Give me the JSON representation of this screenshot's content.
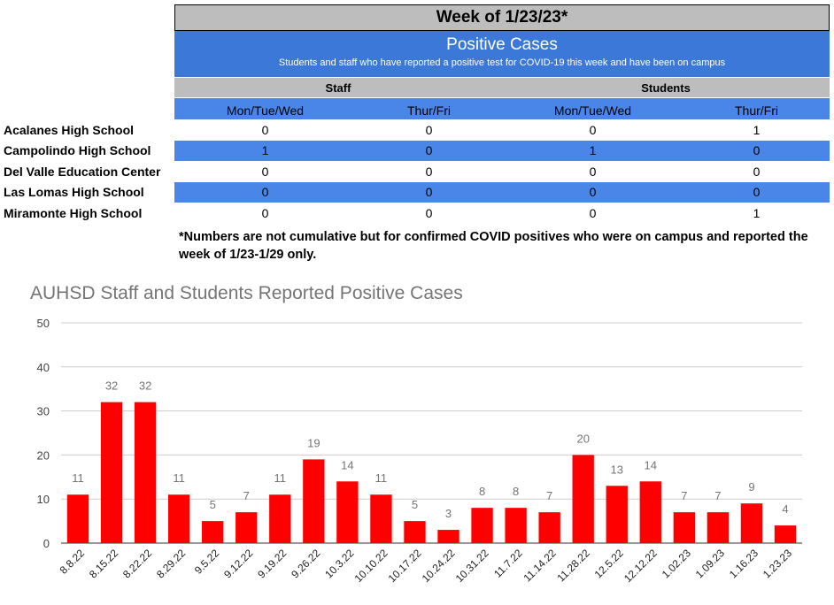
{
  "table": {
    "week_title": "Week of 1/23/23*",
    "header_title": "Positive Cases",
    "header_subtitle": "Students and staff who have reported a positive test for COVID-19 this week and have been on campus",
    "groups": [
      "Staff",
      "Students"
    ],
    "subcolumns": [
      "Mon/Tue/Wed",
      "Thur/Fri",
      "Mon/Tue/Wed",
      "Thur/Fri"
    ],
    "rows": [
      {
        "school": "Acalanes High School",
        "values": [
          "0",
          "0",
          "0",
          "1"
        ]
      },
      {
        "school": "Campolindo High School",
        "values": [
          "1",
          "0",
          "1",
          "0"
        ]
      },
      {
        "school": "Del Valle Education Center",
        "values": [
          "0",
          "0",
          "0",
          "0"
        ]
      },
      {
        "school": "Las Lomas High School",
        "values": [
          "0",
          "0",
          "0",
          "0"
        ]
      },
      {
        "school": "Miramonte High School",
        "values": [
          "0",
          "0",
          "0",
          "1"
        ]
      }
    ],
    "footnote": "*Numbers are not cumulative but for confirmed COVID positives who were on campus and reported the week of 1/23-1/29 only."
  },
  "colors": {
    "header_blue": "#3c78d8",
    "row_blue": "#4a86e8",
    "header_gray": "#bdbdbd",
    "bar_red": "#ff0000"
  },
  "chart_data": {
    "type": "bar",
    "title": "AUHSD Staff and Students Reported Positive Cases",
    "categories": [
      "8.8.22",
      "8.15.22",
      "8.22.22",
      "8.29.22",
      "9.5.22",
      "9.12.22",
      "9.19.22",
      "9.26.22",
      "10.3.22",
      "10.10.22",
      "10.17.22",
      "10.24.22",
      "10.31.22",
      "11.7.22",
      "11.14.22",
      "11.28.22",
      "12.5.22",
      "12.12.22",
      "1.02.23",
      "1.09.23",
      "1.16.23",
      "1.23.23"
    ],
    "values": [
      11,
      32,
      32,
      11,
      5,
      7,
      11,
      19,
      14,
      11,
      5,
      3,
      8,
      8,
      7,
      20,
      13,
      14,
      7,
      7,
      9,
      4
    ],
    "yticks": [
      "0",
      "10",
      "20",
      "30",
      "40",
      "50"
    ],
    "ylim": [
      0,
      50
    ],
    "grid": true,
    "legend": "none"
  }
}
